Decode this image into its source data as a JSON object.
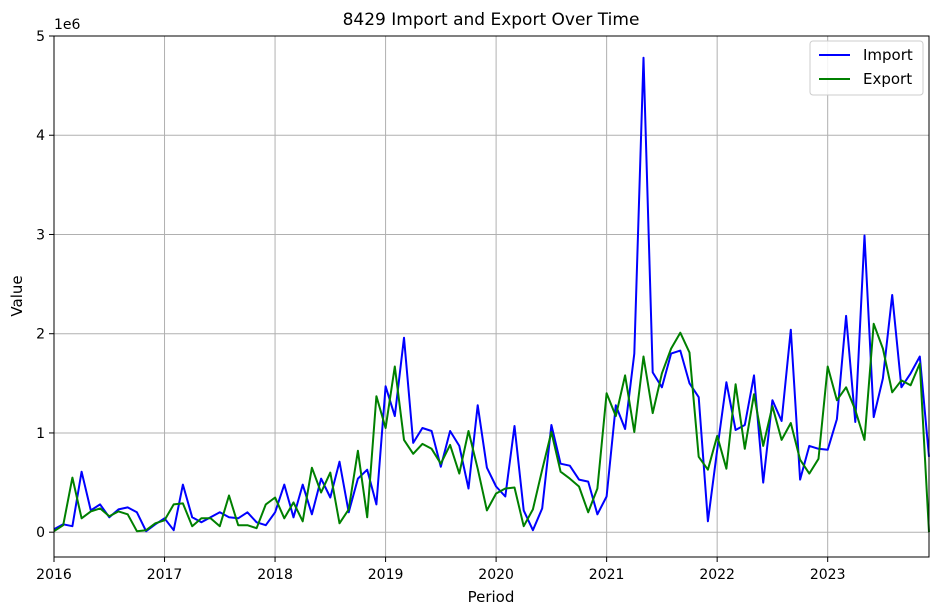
{
  "chart_data": {
    "type": "line",
    "title": "8429 Import and Export Over Time",
    "xlabel": "Period",
    "ylabel": "Value",
    "y_offset_label": "1e6",
    "x_tick_labels": [
      "2016",
      "2017",
      "2018",
      "2019",
      "2020",
      "2021",
      "2022",
      "2023"
    ],
    "y_tick_labels": [
      "0",
      "1",
      "2",
      "3",
      "4",
      "5"
    ],
    "y_tick_values": [
      0,
      1000000,
      2000000,
      3000000,
      4000000,
      5000000
    ],
    "xlim": [
      "2016-01",
      "2023-12"
    ],
    "ylim": [
      -250000,
      5000000
    ],
    "grid": true,
    "legend_position": "top-right",
    "x": [
      "2016-01",
      "2016-02",
      "2016-03",
      "2016-04",
      "2016-05",
      "2016-06",
      "2016-07",
      "2016-08",
      "2016-09",
      "2016-10",
      "2016-11",
      "2016-12",
      "2017-01",
      "2017-02",
      "2017-03",
      "2017-04",
      "2017-05",
      "2017-06",
      "2017-07",
      "2017-08",
      "2017-09",
      "2017-10",
      "2017-11",
      "2017-12",
      "2018-01",
      "2018-02",
      "2018-03",
      "2018-04",
      "2018-05",
      "2018-06",
      "2018-07",
      "2018-08",
      "2018-09",
      "2018-10",
      "2018-11",
      "2018-12",
      "2019-01",
      "2019-02",
      "2019-03",
      "2019-04",
      "2019-05",
      "2019-06",
      "2019-07",
      "2019-08",
      "2019-09",
      "2019-10",
      "2019-11",
      "2019-12",
      "2020-01",
      "2020-02",
      "2020-03",
      "2020-04",
      "2020-05",
      "2020-06",
      "2020-07",
      "2020-08",
      "2020-09",
      "2020-10",
      "2020-11",
      "2020-12",
      "2021-01",
      "2021-02",
      "2021-03",
      "2021-04",
      "2021-05",
      "2021-06",
      "2021-07",
      "2021-08",
      "2021-09",
      "2021-10",
      "2021-11",
      "2021-12",
      "2022-01",
      "2022-02",
      "2022-03",
      "2022-04",
      "2022-05",
      "2022-06",
      "2022-07",
      "2022-08",
      "2022-09",
      "2022-10",
      "2022-11",
      "2022-12",
      "2023-01",
      "2023-02",
      "2023-03",
      "2023-04",
      "2023-05",
      "2023-06",
      "2023-07",
      "2023-08",
      "2023-09",
      "2023-10",
      "2023-11",
      "2023-12"
    ],
    "series": [
      {
        "name": "Import",
        "color": "#0000ff",
        "values": [
          30000,
          80000,
          60000,
          610000,
          220000,
          280000,
          150000,
          230000,
          250000,
          200000,
          10000,
          80000,
          140000,
          20000,
          480000,
          150000,
          100000,
          150000,
          200000,
          150000,
          140000,
          200000,
          100000,
          70000,
          200000,
          480000,
          150000,
          480000,
          180000,
          540000,
          350000,
          710000,
          200000,
          540000,
          630000,
          280000,
          1470000,
          1170000,
          1960000,
          900000,
          1050000,
          1020000,
          660000,
          1020000,
          870000,
          440000,
          1280000,
          650000,
          460000,
          360000,
          1070000,
          220000,
          20000,
          240000,
          1080000,
          690000,
          670000,
          530000,
          510000,
          180000,
          360000,
          1280000,
          1040000,
          1800000,
          4780000,
          1610000,
          1460000,
          1800000,
          1830000,
          1500000,
          1360000,
          110000,
          830000,
          1510000,
          1030000,
          1080000,
          1580000,
          500000,
          1330000,
          1120000,
          2040000,
          530000,
          870000,
          840000,
          830000,
          1140000,
          2180000,
          1110000,
          2990000,
          1160000,
          1550000,
          2390000,
          1460000,
          1600000,
          1770000,
          760000
        ]
      },
      {
        "name": "Export",
        "color": "#008000",
        "values": [
          10000,
          70000,
          550000,
          140000,
          210000,
          240000,
          160000,
          210000,
          180000,
          10000,
          20000,
          90000,
          120000,
          280000,
          290000,
          60000,
          140000,
          140000,
          60000,
          370000,
          70000,
          70000,
          40000,
          280000,
          350000,
          140000,
          300000,
          110000,
          650000,
          400000,
          600000,
          90000,
          230000,
          820000,
          150000,
          1370000,
          1050000,
          1670000,
          930000,
          790000,
          890000,
          840000,
          690000,
          880000,
          590000,
          1020000,
          640000,
          220000,
          390000,
          440000,
          450000,
          60000,
          230000,
          630000,
          1010000,
          610000,
          540000,
          460000,
          200000,
          440000,
          1400000,
          1170000,
          1580000,
          1010000,
          1770000,
          1200000,
          1600000,
          1850000,
          2010000,
          1810000,
          760000,
          630000,
          970000,
          640000,
          1490000,
          840000,
          1390000,
          870000,
          1270000,
          930000,
          1100000,
          730000,
          590000,
          740000,
          1670000,
          1330000,
          1460000,
          1230000,
          930000,
          2100000,
          1850000,
          1410000,
          1530000,
          1480000,
          1700000,
          0
        ]
      }
    ]
  }
}
